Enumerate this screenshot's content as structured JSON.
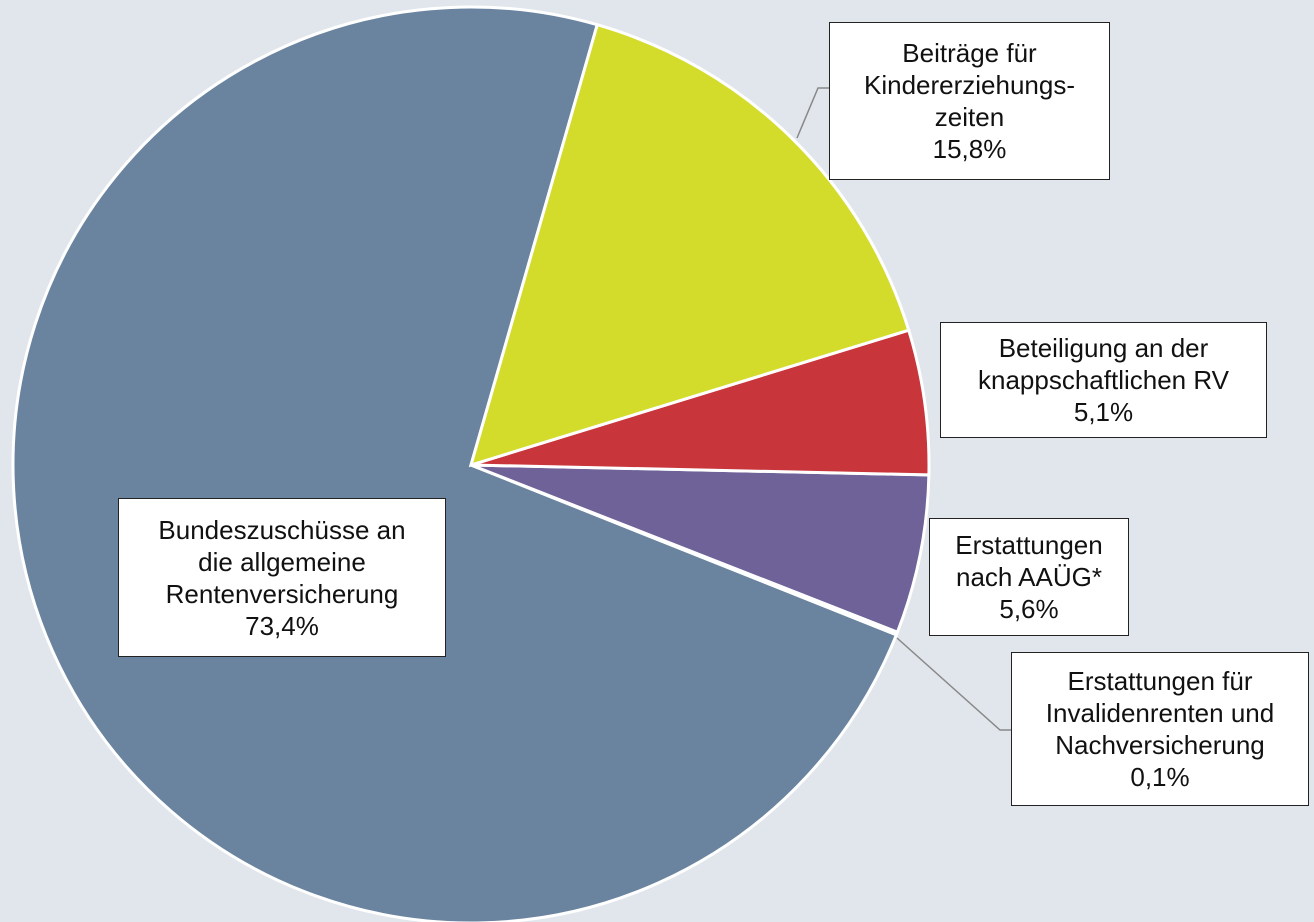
{
  "chart_data": {
    "type": "pie",
    "categories": [
      "Beiträge für\nKindererziehungs-\nzeiten",
      "Beteiligung  an der\nknappschaftlichen RV",
      "Erstattungen\nnach AAÜG*",
      "Erstattungen  für\nInvalidenrenten und\nNachversicherung",
      "Bundeszuschüsse  an\ndie allgemeine\nRentenversicherung"
    ],
    "values": [
      15.8,
      5.1,
      5.6,
      0.1,
      73.4
    ],
    "value_labels": [
      "15,8%",
      "5,1%",
      "5,6%",
      "0,1%",
      "73,4%"
    ],
    "colors": [
      "#d4dc2b",
      "#c8353a",
      "#6e6298",
      "#7a6aa0",
      "#6a84a0"
    ]
  }
}
